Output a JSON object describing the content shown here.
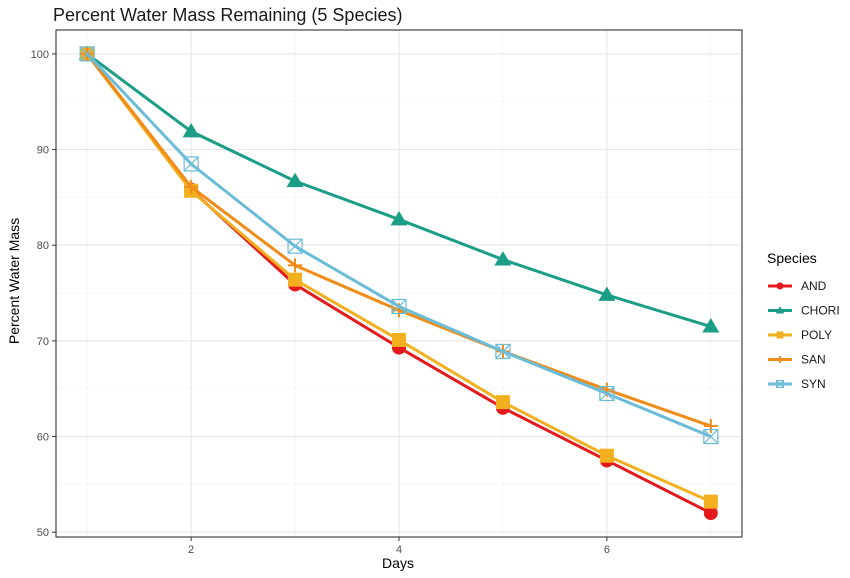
{
  "chart_data": {
    "type": "line",
    "title": "Percent Water Mass Remaining (5 Species)",
    "xlabel": "Days",
    "ylabel": "Percent Water Mass",
    "x": [
      1,
      2,
      3,
      4,
      5,
      6,
      7
    ],
    "xlim": [
      0.7,
      7.3
    ],
    "ylim": [
      49.5,
      102.5
    ],
    "xticks": [
      2,
      4,
      6
    ],
    "yticks": [
      50,
      60,
      70,
      80,
      90,
      100
    ],
    "grid": true,
    "legend": {
      "title": "Species",
      "position": "right"
    },
    "series": [
      {
        "name": "AND",
        "color": "#e41a1c",
        "marker": "circle",
        "values": [
          100,
          85.8,
          75.9,
          69.3,
          63.0,
          57.5,
          52.0
        ]
      },
      {
        "name": "CHORI",
        "color": "#1b9e86",
        "marker": "triangle",
        "values": [
          100,
          91.9,
          86.7,
          82.7,
          78.5,
          74.8,
          71.5
        ]
      },
      {
        "name": "POLY",
        "color": "#f2b01e",
        "marker": "square",
        "values": [
          100,
          85.7,
          76.4,
          70.1,
          63.6,
          58.0,
          53.2
        ]
      },
      {
        "name": "SAN",
        "color": "#f08c1a",
        "marker": "plus",
        "values": [
          100,
          86.1,
          77.9,
          73.2,
          68.9,
          64.9,
          61.1
        ]
      },
      {
        "name": "SYN",
        "color": "#6bbcd9",
        "marker": "boxx",
        "values": [
          100,
          88.5,
          79.9,
          73.6,
          68.9,
          64.5,
          60.0
        ]
      }
    ]
  }
}
